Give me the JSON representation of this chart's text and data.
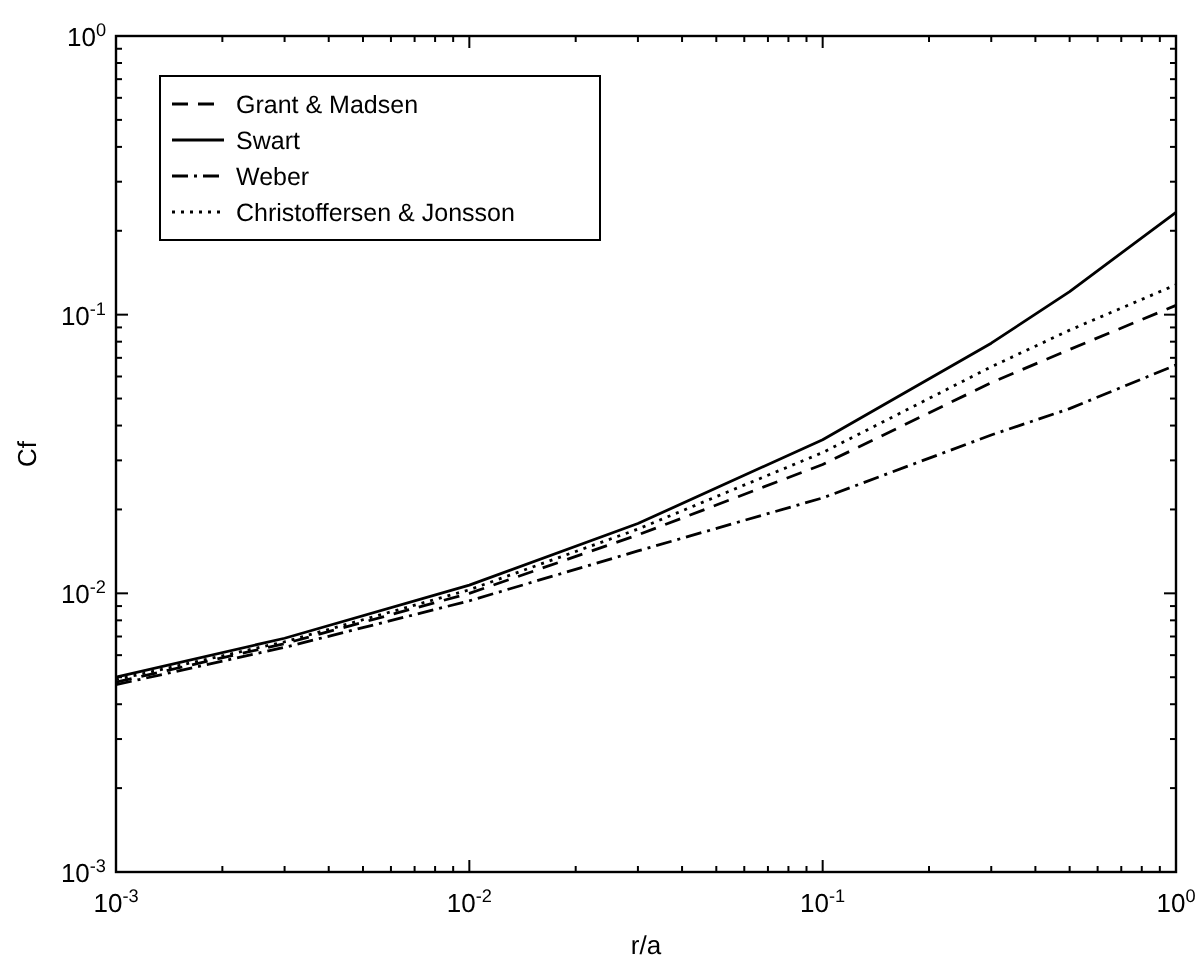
{
  "chart_data": {
    "type": "line",
    "xlabel": "r/a",
    "ylabel": "Cf",
    "log": "xy",
    "grid": false,
    "legend": "top left",
    "x": [
      0.001,
      0.003,
      0.01,
      0.03,
      0.1,
      0.3,
      0.5,
      1
    ],
    "xlim": [
      0.001,
      1
    ],
    "ylim": [
      0.001,
      1
    ],
    "xticks": [
      {
        "value": 0.001,
        "label": "10$^{-3}$"
      },
      {
        "value": 0.002,
        "label": null
      },
      {
        "value": 0.003,
        "label": null
      },
      {
        "value": 0.004,
        "label": null
      },
      {
        "value": 0.005,
        "label": null
      },
      {
        "value": 0.006,
        "label": null
      },
      {
        "value": 0.007,
        "label": null
      },
      {
        "value": 0.008,
        "label": null
      },
      {
        "value": 0.009,
        "label": null
      },
      {
        "value": 0.01,
        "label": "10$^{-2}$"
      },
      {
        "value": 0.02,
        "label": null
      },
      {
        "value": 0.03,
        "label": null
      },
      {
        "value": 0.04,
        "label": null
      },
      {
        "value": 0.05,
        "label": null
      },
      {
        "value": 0.06,
        "label": null
      },
      {
        "value": 0.07,
        "label": null
      },
      {
        "value": 0.08,
        "label": null
      },
      {
        "value": 0.09,
        "label": null
      },
      {
        "value": 0.1,
        "label": "10$^{-1}$"
      },
      {
        "value": 0.2,
        "label": null
      },
      {
        "value": 0.3,
        "label": null
      },
      {
        "value": 0.4,
        "label": null
      },
      {
        "value": 0.5,
        "label": null
      },
      {
        "value": 0.6,
        "label": null
      },
      {
        "value": 0.7,
        "label": null
      },
      {
        "value": 0.8,
        "label": null
      },
      {
        "value": 0.9,
        "label": null
      },
      {
        "value": 1,
        "label": "10$^{0}$"
      }
    ],
    "yticks": [
      {
        "value": 0.001,
        "label": "10$^{-3}$"
      },
      {
        "value": 0.002,
        "label": null
      },
      {
        "value": 0.003,
        "label": null
      },
      {
        "value": 0.004,
        "label": null
      },
      {
        "value": 0.005,
        "label": null
      },
      {
        "value": 0.006,
        "label": null
      },
      {
        "value": 0.007,
        "label": null
      },
      {
        "value": 0.008,
        "label": null
      },
      {
        "value": 0.009,
        "label": null
      },
      {
        "value": 0.01,
        "label": "10$^{-2}$"
      },
      {
        "value": 0.02,
        "label": null
      },
      {
        "value": 0.03,
        "label": null
      },
      {
        "value": 0.04,
        "label": null
      },
      {
        "value": 0.05,
        "label": null
      },
      {
        "value": 0.06,
        "label": null
      },
      {
        "value": 0.07,
        "label": null
      },
      {
        "value": 0.08,
        "label": null
      },
      {
        "value": 0.09,
        "label": null
      },
      {
        "value": 0.1,
        "label": "10$^{-1}$"
      },
      {
        "value": 0.2,
        "label": null
      },
      {
        "value": 0.3,
        "label": null
      },
      {
        "value": 0.4,
        "label": null
      },
      {
        "value": 0.5,
        "label": null
      },
      {
        "value": 0.6,
        "label": null
      },
      {
        "value": 0.7,
        "label": null
      },
      {
        "value": 0.8,
        "label": null
      },
      {
        "value": 0.9,
        "label": null
      },
      {
        "value": 1,
        "label": "10$^{0}$"
      }
    ],
    "series": [
      {
        "name": "Grant & Madsen",
        "color": "#000000",
        "line_style": "dashed",
        "values": [
          0.0048,
          0.0066,
          0.01,
          0.0162,
          0.029,
          0.057,
          0.075,
          0.108
        ]
      },
      {
        "name": "Swart",
        "color": "#000000",
        "line_style": "solid",
        "values": [
          0.005,
          0.0069,
          0.0107,
          0.0178,
          0.0356,
          0.079,
          0.121,
          0.233
        ]
      },
      {
        "name": "Weber",
        "color": "#000000",
        "line_style": "dashdot",
        "values": [
          0.0047,
          0.0064,
          0.0094,
          0.0142,
          0.022,
          0.037,
          0.046,
          0.066
        ]
      },
      {
        "name": "Christoffersen & Jonsson",
        "color": "#000000",
        "line_style": "dotted",
        "values": [
          0.0049,
          0.0067,
          0.0103,
          0.017,
          0.032,
          0.065,
          0.088,
          0.128
        ]
      }
    ]
  }
}
